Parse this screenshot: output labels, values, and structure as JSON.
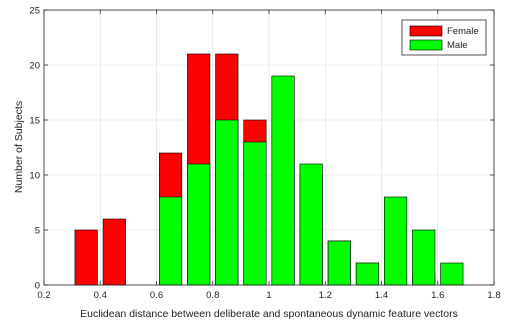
{
  "chart_data": {
    "type": "bar",
    "xlabel": "Euclidean distance between deliberate and spontaneous dynamic feature vectors",
    "ylabel": "Number of Subjects",
    "xlim": [
      0.2,
      1.8
    ],
    "ylim": [
      0,
      25
    ],
    "xticks": [
      0.2,
      0.4,
      0.6,
      0.8,
      1,
      1.2,
      1.4,
      1.6,
      1.8
    ],
    "yticks": [
      0,
      5,
      10,
      15,
      20,
      25
    ],
    "grid": true,
    "legend_position": "top-right",
    "bar_width": 0.08,
    "series": [
      {
        "name": "Female",
        "color": "#ff0000",
        "x": [
          0.35,
          0.45,
          0.65,
          0.75,
          0.85,
          0.95,
          1.05,
          1.15,
          1.25,
          1.35,
          1.45,
          1.55
        ],
        "values": [
          5,
          6,
          12,
          21,
          21,
          15,
          15,
          10,
          4,
          2,
          1,
          1
        ]
      },
      {
        "name": "Male",
        "color": "#00ff00",
        "x": [
          0.65,
          0.75,
          0.85,
          0.95,
          1.05,
          1.15,
          1.25,
          1.35,
          1.45,
          1.55,
          1.65
        ],
        "values": [
          8,
          11,
          15,
          13,
          19,
          11,
          4,
          2,
          8,
          5,
          2
        ]
      }
    ]
  }
}
